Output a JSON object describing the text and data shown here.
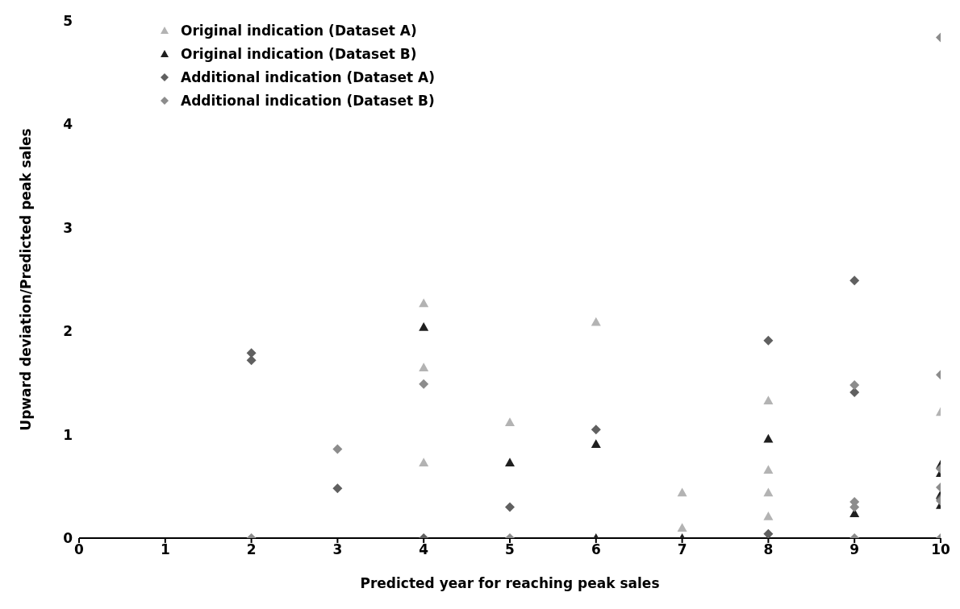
{
  "chart_data": {
    "type": "scatter",
    "xlabel": "Predicted year for reaching peak sales",
    "ylabel": "Upward deviation/Predicted peak sales",
    "xlim": [
      0,
      10
    ],
    "xticks": [
      0,
      1,
      2,
      3,
      4,
      5,
      6,
      7,
      8,
      9,
      10
    ],
    "ylim": [
      0,
      5
    ],
    "yticks": [
      0,
      1,
      2,
      3,
      4,
      5
    ],
    "grid": false,
    "legend": "top left",
    "series": [
      {
        "name": "Original indication (Dataset A)",
        "color": "#b3b3b3",
        "marker": "triangle",
        "x": [
          4,
          4,
          4,
          5,
          6,
          7,
          7,
          8,
          8,
          8,
          8,
          10
        ],
        "values": [
          2.27,
          1.65,
          0.73,
          1.12,
          2.09,
          0.44,
          0.1,
          1.33,
          0.66,
          0.44,
          0.21,
          1.22
        ]
      },
      {
        "name": "Original indication (Dataset B)",
        "color": "#1f1f1f",
        "marker": "triangle",
        "x": [
          4,
          5,
          6,
          6,
          7,
          8,
          8,
          9,
          10,
          10,
          10,
          10
        ],
        "values": [
          2.04,
          0.73,
          0.91,
          0,
          0,
          0.96,
          0,
          0.24,
          0.71,
          0.63,
          0.42,
          0.32
        ]
      },
      {
        "name": "Additional indication (Dataset A)",
        "color": "#606060",
        "marker": "diamond",
        "x": [
          2,
          2,
          3,
          4,
          5,
          6,
          8,
          8,
          9,
          9,
          10
        ],
        "values": [
          1.79,
          1.72,
          0.48,
          0,
          0.3,
          1.05,
          1.91,
          0.04,
          2.49,
          1.41,
          0.38
        ]
      },
      {
        "name": "Additional indication (Dataset B)",
        "color": "#8c8c8c",
        "marker": "diamond",
        "x": [
          2,
          3,
          4,
          5,
          9,
          9,
          9,
          9,
          10,
          10,
          10,
          10,
          10,
          10
        ],
        "values": [
          0,
          0.86,
          1.49,
          0,
          1.48,
          0.35,
          0.3,
          0,
          4.84,
          1.58,
          0.67,
          0.49,
          0.36,
          0
        ]
      }
    ]
  }
}
